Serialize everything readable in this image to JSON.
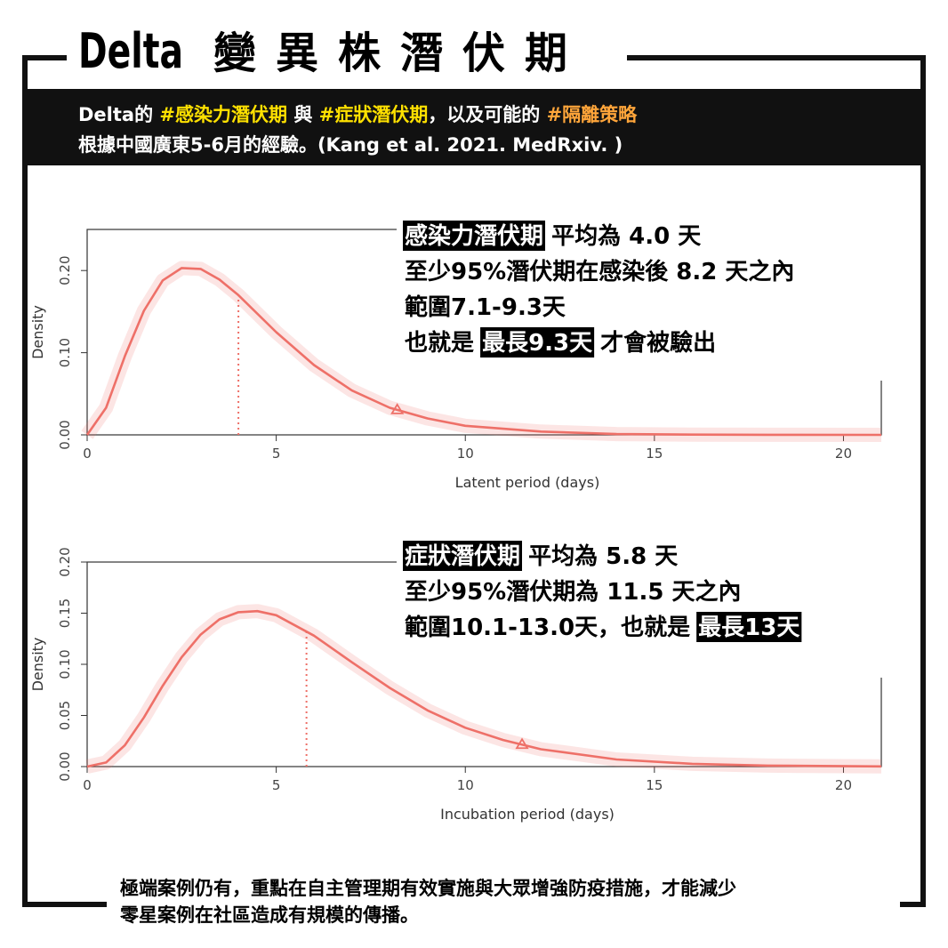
{
  "header": {
    "title": "Delta",
    "title_cjk": "變異株潛伏期",
    "subtitle": [
      [
        {
          "text": "Delta的 "
        },
        {
          "text": "#感染力潛伏期",
          "color": "#ffe100"
        },
        {
          "text": " 與 "
        },
        {
          "text": "#症狀潛伏期",
          "color": "#ffe100"
        },
        {
          "text": "，以及可能的 "
        },
        {
          "text": "#隔離策略",
          "color": "#ffa53a"
        }
      ],
      [
        {
          "text": "根據中國廣東5-6月的經驗。(Kang et al. 2021. MedRxiv. )"
        }
      ]
    ]
  },
  "chart_data": [
    {
      "type": "line",
      "xlabel": "Latent period (days)",
      "ylabel": "Density",
      "color": "#ee7068",
      "x": [
        0,
        0.5,
        1,
        1.5,
        2,
        2.5,
        3,
        3.5,
        4,
        5,
        6,
        7,
        8,
        9,
        10,
        12,
        14,
        16,
        18,
        21
      ],
      "values": [
        0,
        0.033,
        0.096,
        0.151,
        0.188,
        0.203,
        0.202,
        0.189,
        0.17,
        0.125,
        0.085,
        0.054,
        0.033,
        0.02,
        0.011,
        0.004,
        0.001,
        0.0003,
        0.0001,
        0
      ],
      "mean": 4.0,
      "p95": 8.2,
      "xlim": [
        0,
        21
      ],
      "xticks": [
        0,
        5,
        10,
        15,
        20
      ],
      "ylim": [
        0,
        0.25
      ],
      "yticks": [
        {
          "value": 0,
          "label": "0.00"
        },
        {
          "value": 0.1,
          "label": "0.10"
        },
        {
          "value": 0.2,
          "label": "0.20"
        }
      ],
      "annotation": [
        [
          {
            "text": "感染力潛伏期",
            "highlight": true
          },
          {
            "text": " 平均為 4.0 天"
          }
        ],
        [
          {
            "text": "至少95%潛伏期在感染後 8.2 天之內"
          }
        ],
        [
          {
            "text": "範圍7.1-9.3天"
          }
        ],
        [
          {
            "text": "也就是 "
          },
          {
            "text": "最長9.3天",
            "highlight": true
          },
          {
            "text": " 才會被驗出"
          }
        ]
      ]
    },
    {
      "type": "line",
      "xlabel": "Incubation period (days)",
      "ylabel": "Density",
      "color": "#ee7068",
      "x": [
        0,
        0.5,
        1,
        1.5,
        2,
        2.5,
        3,
        3.5,
        4,
        4.5,
        5,
        6,
        7,
        8,
        9,
        10,
        11,
        12,
        14,
        16,
        18,
        21
      ],
      "values": [
        0,
        0.004,
        0.021,
        0.048,
        0.079,
        0.107,
        0.129,
        0.144,
        0.151,
        0.152,
        0.148,
        0.128,
        0.102,
        0.077,
        0.055,
        0.038,
        0.026,
        0.017,
        0.007,
        0.0027,
        0.001,
        0.0002
      ],
      "mean": 5.8,
      "p95": 11.5,
      "xlim": [
        0,
        21
      ],
      "xticks": [
        0,
        5,
        10,
        15,
        20
      ],
      "ylim": [
        0,
        0.2
      ],
      "yticks": [
        {
          "value": 0,
          "label": "0.00"
        },
        {
          "value": 0.05,
          "label": "0.05"
        },
        {
          "value": 0.1,
          "label": "0.10"
        },
        {
          "value": 0.15,
          "label": "0.15"
        },
        {
          "value": 0.2,
          "label": "0.20"
        }
      ],
      "annotation": [
        [
          {
            "text": "症狀潛伏期",
            "highlight": true
          },
          {
            "text": " 平均為 5.8 天"
          }
        ],
        [
          {
            "text": "至少95%潛伏期為 11.5 天之內"
          }
        ],
        [
          {
            "text": "範圍10.1-13.0天，也就是 "
          },
          {
            "text": "最長13天",
            "highlight": true
          }
        ]
      ]
    }
  ],
  "footer": [
    "極端案例仍有，重點在自主管理期有效實施與大眾增強防疫措施，才能減少",
    "零星案例在社區造成有規模的傳播。"
  ]
}
